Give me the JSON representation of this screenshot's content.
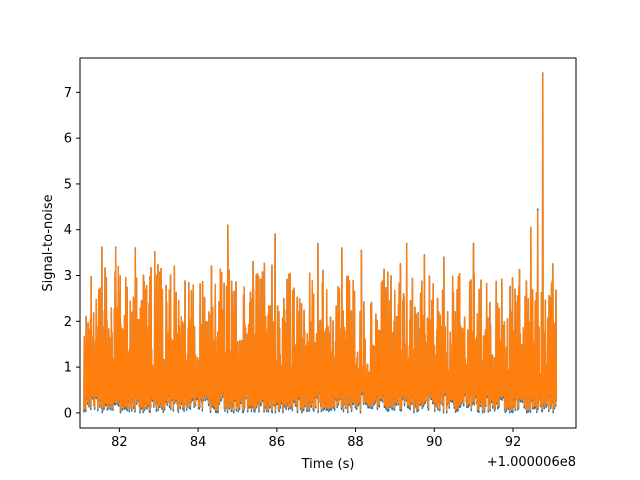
{
  "chart_data": {
    "type": "line",
    "title": "",
    "xlabel": "Time (s)",
    "ylabel": "Signal-to-noise",
    "x_offset_label": "+1.000006e8",
    "xlim": [
      81.0,
      93.6
    ],
    "ylim": [
      -0.33,
      7.75
    ],
    "x_ticks": [
      82,
      84,
      86,
      88,
      90,
      92
    ],
    "y_ticks": [
      0,
      1,
      2,
      3,
      4,
      5,
      6,
      7
    ],
    "grid": false,
    "legend": "none",
    "x_range": [
      81.1,
      93.1
    ],
    "series": [
      {
        "color": "#1f77b4",
        "peaks": [
          {
            "x": 81.55,
            "y": 3.62
          },
          {
            "x": 81.9,
            "y": 3.62
          },
          {
            "x": 82.4,
            "y": 3.6
          },
          {
            "x": 82.9,
            "y": 3.52
          },
          {
            "x": 84.75,
            "y": 4.1
          },
          {
            "x": 85.4,
            "y": 3.3
          },
          {
            "x": 85.95,
            "y": 3.9
          },
          {
            "x": 87.05,
            "y": 3.7
          },
          {
            "x": 87.65,
            "y": 3.6
          },
          {
            "x": 88.15,
            "y": 3.55
          },
          {
            "x": 89.3,
            "y": 3.7
          },
          {
            "x": 89.75,
            "y": 3.45
          },
          {
            "x": 90.25,
            "y": 3.4
          },
          {
            "x": 91.0,
            "y": 3.7
          },
          {
            "x": 92.45,
            "y": 4.05
          },
          {
            "x": 92.62,
            "y": 4.45
          },
          {
            "x": 92.75,
            "y": 7.42
          },
          {
            "x": 93.0,
            "y": 2.9
          }
        ]
      },
      {
        "color": "#ff7f0e",
        "peaks": [
          {
            "x": 81.55,
            "y": 3.6
          },
          {
            "x": 81.9,
            "y": 3.6
          },
          {
            "x": 82.4,
            "y": 3.58
          },
          {
            "x": 82.9,
            "y": 3.5
          },
          {
            "x": 84.75,
            "y": 4.1
          },
          {
            "x": 85.4,
            "y": 3.28
          },
          {
            "x": 85.95,
            "y": 3.88
          },
          {
            "x": 87.05,
            "y": 3.68
          },
          {
            "x": 87.65,
            "y": 3.58
          },
          {
            "x": 88.15,
            "y": 3.53
          },
          {
            "x": 89.3,
            "y": 3.68
          },
          {
            "x": 89.75,
            "y": 3.43
          },
          {
            "x": 90.25,
            "y": 3.38
          },
          {
            "x": 91.0,
            "y": 3.68
          },
          {
            "x": 92.45,
            "y": 4.05
          },
          {
            "x": 92.62,
            "y": 4.4
          },
          {
            "x": 92.75,
            "y": 7.4
          },
          {
            "x": 93.0,
            "y": 2.9
          }
        ]
      }
    ]
  }
}
